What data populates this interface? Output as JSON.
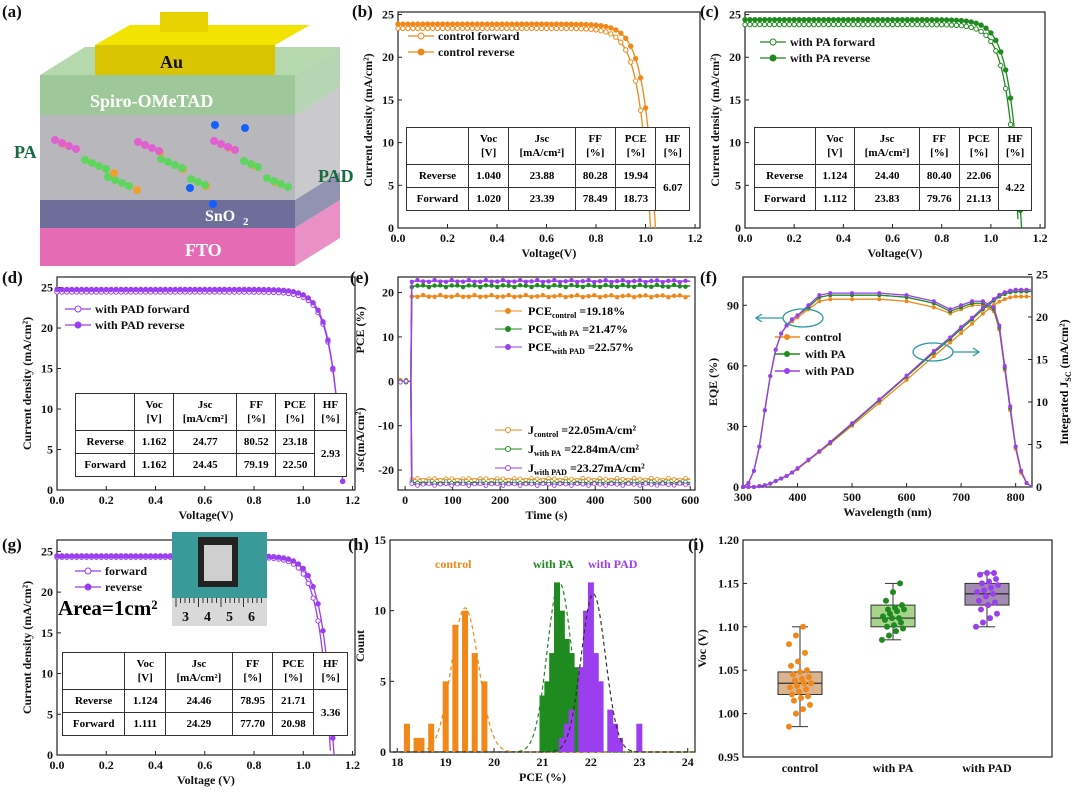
{
  "panel_labels": [
    "(a)",
    "(b)",
    "(c)",
    "(d)",
    "(e)",
    "(f)",
    "(g)",
    "(h)",
    "(i)"
  ],
  "device": {
    "layers": {
      "au": "Au",
      "spiro": "Spiro-OMeTAD",
      "sno2": "SnO",
      "sno2_sub": "2",
      "fto": "FTO"
    },
    "molecule_labels": {
      "pa": "PA",
      "pad": "PAD"
    }
  },
  "colors": {
    "control": "#f0881a",
    "pa": "#1f8a1f",
    "pad": "#9a3ef0"
  },
  "table_headers": [
    "",
    "Voc\n[V]",
    "Jsc\n[mA/cm²]",
    "FF\n[%]",
    "PCE\n[%]",
    "HF\n[%]"
  ],
  "chart_data": [
    {
      "type": "line",
      "panel": "b",
      "xlabel": "Voltage(V)",
      "ylabel": "Current density (mA/cm²)",
      "xlim": [
        0,
        1.22
      ],
      "ylim": [
        0,
        25.3
      ],
      "xticks": [
        "0.0",
        "0.2",
        "0.4",
        "0.6",
        "0.8",
        "1.0",
        "1.2"
      ],
      "yticks": [
        "0",
        "5",
        "10",
        "15",
        "20",
        "25"
      ],
      "color": "#f0881a",
      "series": [
        {
          "name": "control forward",
          "jsc": 23.39,
          "voc": 1.02,
          "marker": "open"
        },
        {
          "name": "control reverse",
          "jsc": 23.88,
          "voc": 1.04,
          "marker": "filled"
        }
      ],
      "table": {
        "rows": [
          [
            "Reverse",
            "1.040",
            "23.88",
            "80.28",
            "19.94"
          ],
          [
            "Forward",
            "1.020",
            "23.39",
            "78.49",
            "18.73"
          ]
        ],
        "hf": "6.07"
      }
    },
    {
      "type": "line",
      "panel": "c",
      "xlabel": "Voltage(V)",
      "ylabel": "Current density (mA/cm²)",
      "xlim": [
        0,
        1.22
      ],
      "ylim": [
        0,
        25.3
      ],
      "xticks": [
        "0.0",
        "0.2",
        "0.4",
        "0.6",
        "0.8",
        "1.0",
        "1.2"
      ],
      "yticks": [
        "0",
        "5",
        "10",
        "15",
        "20",
        "25"
      ],
      "color": "#1f8a1f",
      "series": [
        {
          "name": "with PA forward",
          "jsc": 23.83,
          "voc": 1.112,
          "marker": "open"
        },
        {
          "name": "with PA reverse",
          "jsc": 24.4,
          "voc": 1.124,
          "marker": "filled"
        }
      ],
      "table": {
        "rows": [
          [
            "Reverse",
            "1.124",
            "24.40",
            "80.40",
            "22.06"
          ],
          [
            "Forward",
            "1.112",
            "23.83",
            "79.76",
            "21.13"
          ]
        ],
        "hf": "4.22"
      }
    },
    {
      "type": "line",
      "panel": "d",
      "xlabel": "Voltage(V)",
      "ylabel": "Current density (mA/cm²)",
      "xlim": [
        0,
        1.21
      ],
      "ylim": [
        0,
        26.3
      ],
      "xticks": [
        "0.0",
        "0.2",
        "0.4",
        "0.6",
        "0.8",
        "1.0",
        "1.2"
      ],
      "yticks": [
        "0",
        "5",
        "10",
        "15",
        "20",
        "25"
      ],
      "color": "#9a3ef0",
      "series": [
        {
          "name": "with PAD forward",
          "jsc": 24.45,
          "voc": 1.162,
          "marker": "open"
        },
        {
          "name": "with PAD reverse",
          "jsc": 24.77,
          "voc": 1.162,
          "marker": "filled"
        }
      ],
      "table": {
        "rows": [
          [
            "Reverse",
            "1.162",
            "24.77",
            "80.52",
            "23.18"
          ],
          [
            "Forward",
            "1.162",
            "24.45",
            "79.19",
            "22.50"
          ]
        ],
        "hf": "2.93"
      }
    },
    {
      "type": "line",
      "panel": "e",
      "xlabel": "Time (s)",
      "ylabel": "PCE (%)",
      "ylabel2": "Jsc(mA/cm²)",
      "xlim": [
        -15,
        610
      ],
      "ylim": [
        -24.5,
        23.5
      ],
      "xticks": [
        "0",
        "100",
        "200",
        "300",
        "400",
        "500",
        "600"
      ],
      "yticks": [
        "-20",
        "-10",
        "0",
        "10",
        "20"
      ],
      "switch_on_time": 12,
      "series": [
        {
          "name": "PCE control",
          "legend_main": "PCE",
          "legend_sub": "control",
          "legend_value": " =19.18%",
          "value": 19.18,
          "color": "#f0881a",
          "marker": "filled"
        },
        {
          "name": "PCE with PA",
          "legend_main": "PCE",
          "legend_sub": "with PA",
          "legend_value": " =21.47%",
          "value": 21.47,
          "color": "#1f8a1f",
          "marker": "filled"
        },
        {
          "name": "PCE with PAD",
          "legend_main": "PCE",
          "legend_sub": "with PAD",
          "legend_value": " =22.57%",
          "value": 22.57,
          "color": "#9a3ef0",
          "marker": "filled"
        },
        {
          "name": "J control",
          "legend_main": "J",
          "legend_sub": "control",
          "legend_value": " =22.05mA/cm²",
          "value": -22.05,
          "color": "#f0881a",
          "marker": "open"
        },
        {
          "name": "J with PA",
          "legend_main": "J",
          "legend_sub": "with PA",
          "legend_value": " =22.84mA/cm²",
          "value": -22.84,
          "color": "#1f8a1f",
          "marker": "open"
        },
        {
          "name": "J with PAD",
          "legend_main": "J",
          "legend_sub": "with PAD",
          "legend_value": " =23.27mA/cm²",
          "value": -23.27,
          "color": "#9a3ef0",
          "marker": "open"
        }
      ]
    },
    {
      "type": "line",
      "panel": "f",
      "xlabel": "Wavelength (nm)",
      "ylabel": "EQE (%)",
      "ylabel2": "Integrated J",
      "ylabel2_sub": "SC",
      "ylabel2_unit": " (mA/cm²)",
      "xlim": [
        300,
        830
      ],
      "ylim": [
        0,
        104
      ],
      "y2lim": [
        0,
        24.7
      ],
      "xticks": [
        "300",
        "400",
        "500",
        "600",
        "700",
        "800"
      ],
      "yticks": [
        "0",
        "30",
        "60",
        "90"
      ],
      "y2ticks": [
        "0",
        "5",
        "10",
        "15",
        "20",
        "25"
      ],
      "x": [
        300,
        310,
        320,
        330,
        340,
        350,
        360,
        370,
        380,
        390,
        400,
        420,
        440,
        460,
        500,
        550,
        600,
        650,
        680,
        700,
        720,
        740,
        760,
        770,
        780,
        790,
        800,
        810,
        820,
        850
      ],
      "series": [
        {
          "name": "control",
          "color": "#f0881a",
          "eqe": [
            0,
            2,
            8,
            20,
            38,
            55,
            68,
            76,
            80,
            82,
            84,
            88,
            92,
            93,
            93,
            93,
            92,
            89,
            86,
            88,
            90,
            90,
            87,
            78,
            58,
            38,
            19,
            7,
            2,
            0
          ],
          "integrated_jsc": [
            0,
            0,
            0,
            0.1,
            0.2,
            0.4,
            0.7,
            1.0,
            1.3,
            1.7,
            2.1,
            3.1,
            4.1,
            5.1,
            7.2,
            9.9,
            12.6,
            15.4,
            17.0,
            18.1,
            19.2,
            20.4,
            21.4,
            21.8,
            22.1,
            22.3,
            22.4,
            22.4,
            22.4,
            22.4
          ]
        },
        {
          "name": "with PA",
          "color": "#1f8a1f",
          "eqe": [
            0,
            2,
            8,
            20,
            38,
            55,
            68,
            76,
            80,
            83,
            85,
            89,
            94,
            95,
            95,
            95,
            94,
            91,
            87,
            89,
            91,
            91,
            88,
            79,
            59,
            39,
            20,
            8,
            2,
            0
          ],
          "integrated_jsc": [
            0,
            0,
            0,
            0.1,
            0.2,
            0.4,
            0.7,
            1.0,
            1.3,
            1.7,
            2.2,
            3.2,
            4.2,
            5.2,
            7.4,
            10.2,
            13.0,
            15.8,
            17.4,
            18.6,
            19.7,
            20.9,
            21.9,
            22.4,
            22.7,
            22.9,
            23.0,
            23.0,
            23.0,
            23.0
          ]
        },
        {
          "name": "with PAD",
          "color": "#9a3ef0",
          "eqe": [
            0,
            2,
            8,
            20,
            38,
            55,
            68,
            76,
            80,
            83,
            85,
            90,
            95,
            96,
            96,
            96,
            95,
            92,
            88,
            90,
            92,
            92,
            89,
            80,
            60,
            40,
            20,
            8,
            2,
            0
          ],
          "integrated_jsc": [
            0,
            0,
            0,
            0.1,
            0.2,
            0.4,
            0.7,
            1.0,
            1.3,
            1.7,
            2.2,
            3.2,
            4.2,
            5.3,
            7.5,
            10.3,
            13.1,
            16.0,
            17.6,
            18.8,
            19.9,
            21.1,
            22.1,
            22.6,
            22.9,
            23.1,
            23.2,
            23.2,
            23.2,
            23.2
          ]
        }
      ]
    },
    {
      "type": "line",
      "panel": "g",
      "xlabel": "Voltage (V)",
      "ylabel": "Current density (mA/cm²)",
      "xlim": [
        0,
        1.21
      ],
      "ylim": [
        0,
        26.4
      ],
      "xticks": [
        "0.0",
        "0.2",
        "0.4",
        "0.6",
        "0.8",
        "1.0",
        "1.2"
      ],
      "yticks": [
        "0",
        "5",
        "10",
        "15",
        "20",
        "25"
      ],
      "color": "#9a3ef0",
      "area_label": "Area=1cm²",
      "ruler_digits": [
        "3",
        "4",
        "5",
        "6"
      ],
      "series": [
        {
          "name": "forward",
          "jsc": 24.29,
          "voc": 1.111,
          "marker": "open"
        },
        {
          "name": "reverse",
          "jsc": 24.46,
          "voc": 1.124,
          "marker": "filled"
        }
      ],
      "table": {
        "rows": [
          [
            "Reverse",
            "1.124",
            "24.46",
            "78.95",
            "21.71"
          ],
          [
            "Forward",
            "1.111",
            "24.29",
            "77.70",
            "20.98"
          ]
        ],
        "hf": "3.36"
      }
    },
    {
      "type": "bar",
      "panel": "h",
      "xlabel": "PCE (%)",
      "ylabel": "Count",
      "xlim": [
        17.85,
        24.15
      ],
      "ylim": [
        0,
        15
      ],
      "xticks": [
        "18",
        "19",
        "20",
        "21",
        "22",
        "23",
        "24"
      ],
      "yticks": [
        "0",
        "5",
        "10",
        "15"
      ],
      "series": [
        {
          "name": "control",
          "color": "#f0881a",
          "bins": [
            18.2,
            18.4,
            18.5,
            18.7,
            19.0,
            19.2,
            19.4,
            19.6,
            19.8
          ],
          "counts": [
            2,
            1,
            1,
            2,
            5,
            9,
            10,
            7,
            5
          ],
          "fit_mean": 19.4,
          "fit_sigma": 0.28,
          "fit_peak": 10.2
        },
        {
          "name": "with PA",
          "color": "#1f8a1f",
          "bins": [
            21.0,
            21.1,
            21.2,
            21.3,
            21.4,
            21.5,
            21.6,
            21.7,
            21.8,
            21.9
          ],
          "counts": [
            4,
            5,
            7,
            12,
            10,
            8,
            7,
            6,
            4,
            1
          ],
          "fit_mean": 21.35,
          "fit_sigma": 0.25,
          "fit_peak": 12
        },
        {
          "name": "with PAD",
          "color": "#9a3ef0",
          "bins": [
            21.4,
            21.5,
            21.6,
            21.8,
            21.9,
            22.0,
            22.1,
            22.2,
            22.4,
            22.5,
            22.6,
            23.0
          ],
          "counts": [
            1,
            2,
            3,
            6,
            10,
            12,
            7,
            5,
            3,
            2,
            1,
            2
          ],
          "fit_mean": 22.05,
          "fit_sigma": 0.25,
          "fit_peak": 11.2
        }
      ]
    },
    {
      "type": "box",
      "panel": "i",
      "xlabel": "",
      "ylabel": "Voc (V)",
      "ylim": [
        0.95,
        1.2
      ],
      "yticks": [
        "0.95",
        "1.00",
        "1.05",
        "1.10",
        "1.15",
        "1.20"
      ],
      "categories": [
        "control",
        "with PA",
        "with PAD"
      ],
      "series": [
        {
          "name": "control",
          "color": "#f0881a",
          "box_fill": "#d9b48f",
          "min": 0.985,
          "q1": 1.022,
          "median": 1.035,
          "q3": 1.048,
          "max": 1.1,
          "points": [
            0.985,
            1.0,
            1.005,
            1.01,
            1.015,
            1.018,
            1.02,
            1.022,
            1.025,
            1.028,
            1.03,
            1.032,
            1.035,
            1.035,
            1.038,
            1.04,
            1.042,
            1.045,
            1.048,
            1.05,
            1.055,
            1.06,
            1.07,
            1.08,
            1.09,
            1.1
          ]
        },
        {
          "name": "with PA",
          "color": "#1f8a1f",
          "box_fill": "#a6d48c",
          "min": 1.085,
          "q1": 1.1,
          "median": 1.11,
          "q3": 1.125,
          "max": 1.15,
          "points": [
            1.085,
            1.09,
            1.095,
            1.098,
            1.1,
            1.102,
            1.105,
            1.108,
            1.11,
            1.11,
            1.112,
            1.115,
            1.118,
            1.12,
            1.12,
            1.122,
            1.125,
            1.13,
            1.14,
            1.15
          ]
        },
        {
          "name": "with PAD",
          "color": "#9a3ef0",
          "box_fill": "#a28bb0",
          "min": 1.1,
          "q1": 1.125,
          "median": 1.138,
          "q3": 1.15,
          "max": 1.162,
          "points": [
            1.1,
            1.105,
            1.11,
            1.115,
            1.12,
            1.125,
            1.128,
            1.13,
            1.135,
            1.138,
            1.14,
            1.142,
            1.145,
            1.148,
            1.15,
            1.152,
            1.155,
            1.16,
            1.162,
            1.162
          ]
        }
      ]
    }
  ]
}
